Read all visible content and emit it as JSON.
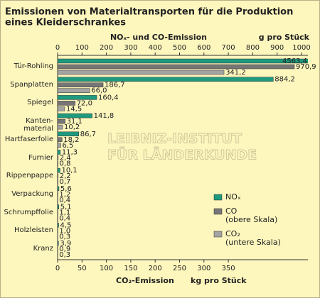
{
  "chart_data": {
    "type": "bar",
    "title": "Emissionen von Materialtransporten für die Produktion",
    "subtitle": "eines Kleiderschrankes",
    "x_label": "NOₓ- und CO-Emission",
    "x_unit": "g pro Stück",
    "x2_label": "CO₂-Emission",
    "x2_unit": "kg pro Stück",
    "watermark": [
      "LEIBNIZ-INSTITUT",
      "FÜR LÄNDERKUNDE"
    ],
    "categories": [
      "Tür-Rohling",
      "Spanplatten",
      "Spiegel",
      "Kanten-\nmaterial",
      "Hartfaserfolie",
      "Furnier",
      "Rippenpappe",
      "Verpackung",
      "Schrumpffolie",
      "Holzleisten",
      "Kranz"
    ],
    "xlim": [
      0,
      1000
    ],
    "xticks": [
      0,
      100,
      200,
      300,
      400,
      500,
      600,
      700,
      800,
      900,
      1000
    ],
    "x2lim": [
      0,
      500
    ],
    "x2ticks": [
      0,
      50,
      100,
      150,
      200,
      250,
      300,
      350
    ],
    "series": [
      {
        "name": "NOₓ",
        "color": "#1e9a7e",
        "axis": "x",
        "values": [
          4563.4,
          884.2,
          160.4,
          141.8,
          86.7,
          11.3,
          10.1,
          5.6,
          5.1,
          4.5,
          3.9
        ],
        "value_labels": [
          "4563,4",
          "884,2",
          "160,4",
          "141,8",
          "86,7",
          "11,3",
          "10,1",
          "5,6",
          "5,1",
          "4,5",
          "3,9"
        ]
      },
      {
        "name": "CO\n(obere Skala)",
        "color": "#767676",
        "axis": "x",
        "values": [
          970.9,
          186.7,
          72.0,
          31.1,
          18.2,
          2.4,
          2.2,
          1.2,
          1.1,
          1.0,
          0.9
        ],
        "value_labels": [
          "970,9",
          "186,7",
          "72,0",
          "31,1",
          "18,2",
          "2,4",
          "2,2",
          "1,2",
          "1,1",
          "1,0",
          "0,9"
        ]
      },
      {
        "name": "CO₂\n(untere Skala)",
        "color": "#a3a3a3",
        "axis": "x2",
        "values": [
          341.2,
          66.0,
          14.5,
          10.2,
          6.5,
          0.8,
          0.7,
          0.4,
          0.4,
          0.3,
          0.3
        ],
        "value_labels": [
          "341,2",
          "66,0",
          "14,5",
          "10,2",
          "6,5",
          "0,8",
          "0,7",
          "0,4",
          "0,4",
          "0,3",
          "0,3"
        ]
      }
    ]
  }
}
